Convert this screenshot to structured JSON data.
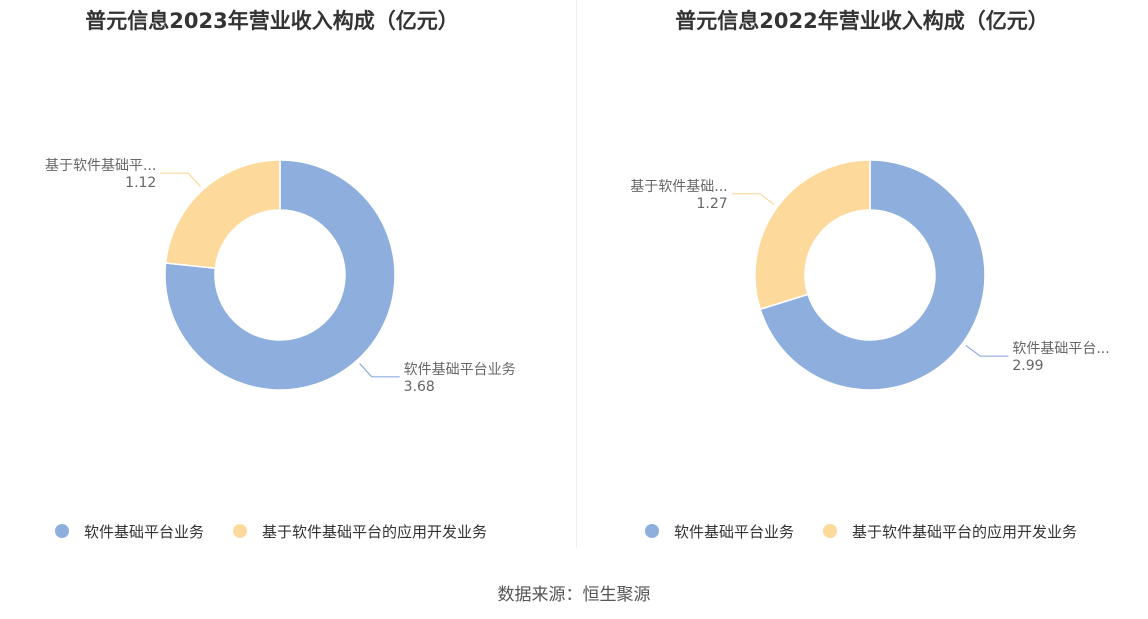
{
  "source_text": "数据来源：恒生聚源",
  "colors": {
    "series_a": "#8eaedd",
    "series_b": "#fdd99b",
    "title": "#333333",
    "label": "#666666",
    "legend_text": "#333333"
  },
  "chart_data": [
    {
      "type": "pie",
      "donut": true,
      "title": "普元信息2023年营业收入构成（亿元）",
      "legend": [
        "软件基础平台业务",
        "基于软件基础平台的应用开发业务"
      ],
      "legend_position": "bottom",
      "slices": [
        {
          "name": "软件基础平台业务",
          "label": "软件基础平台业务",
          "value": 3.68
        },
        {
          "name": "基于软件基础平台的应用开发业务",
          "label": "基于软件基础平...",
          "value": 1.12
        }
      ]
    },
    {
      "type": "pie",
      "donut": true,
      "title": "普元信息2022年营业收入构成（亿元）",
      "legend": [
        "软件基础平台业务",
        "基于软件基础平台的应用开发业务"
      ],
      "legend_position": "bottom",
      "slices": [
        {
          "name": "软件基础平台业务",
          "label": "软件基础平台...",
          "value": 2.99
        },
        {
          "name": "基于软件基础平台的应用开发业务",
          "label": "基于软件基础...",
          "value": 1.27
        }
      ]
    }
  ]
}
